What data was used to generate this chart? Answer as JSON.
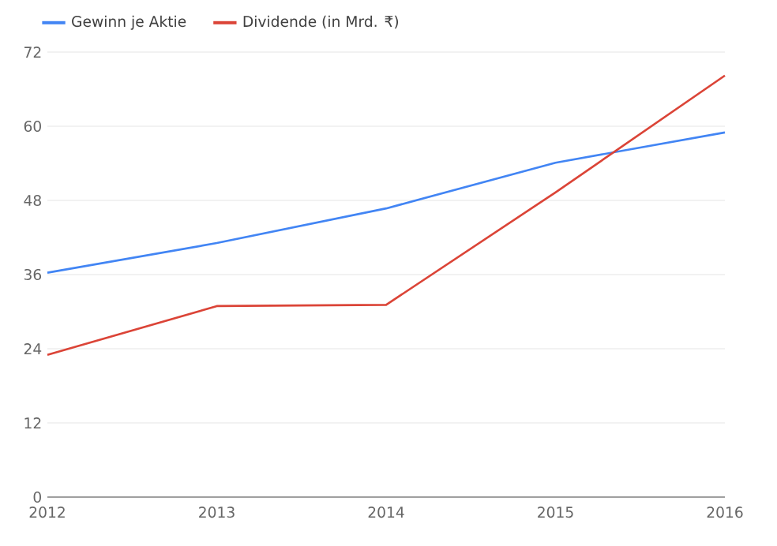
{
  "chart_data": {
    "type": "line",
    "x": [
      2012,
      2013,
      2014,
      2015,
      2016
    ],
    "series": [
      {
        "name": "Gewinn je Aktie",
        "color": "#4285f4",
        "values": [
          36.3,
          41.1,
          46.7,
          54.1,
          59
        ]
      },
      {
        "name": "Dividende (in Mrd. ₹)",
        "color": "#db4437",
        "values": [
          23,
          30.9,
          31.1,
          49.3,
          68.2
        ]
      }
    ],
    "xlim": [
      2012,
      2016
    ],
    "xticks": [
      2012,
      2013,
      2014,
      2015,
      2016
    ],
    "ylim": [
      0,
      72
    ],
    "yticks": [
      0,
      12,
      24,
      36,
      48,
      60,
      72
    ],
    "grid": "y",
    "legend": "top left",
    "marker": "none",
    "line_style": "solid"
  }
}
